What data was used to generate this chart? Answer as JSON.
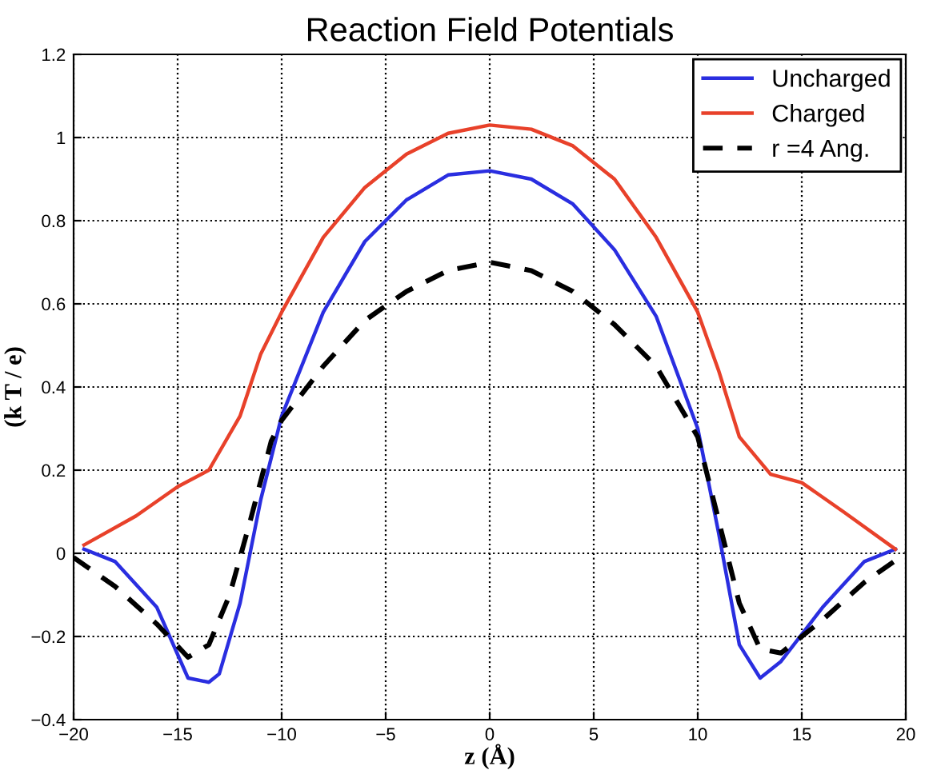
{
  "chart_data": {
    "type": "line",
    "title": "Reaction Field Potentials",
    "xlabel": "z (Å)",
    "ylabel": "(k T / e)",
    "xlim": [
      -20,
      20
    ],
    "ylim": [
      -0.4,
      1.2
    ],
    "xticks": [
      {
        "value": -20,
        "label": "−20"
      },
      {
        "value": -15,
        "label": "−15"
      },
      {
        "value": -10,
        "label": "−10"
      },
      {
        "value": -5,
        "label": "−5"
      },
      0,
      5,
      10,
      15,
      20
    ],
    "yticks": [
      {
        "value": -0.4,
        "label": "−0.4"
      },
      {
        "value": -0.2,
        "label": "−0.2"
      },
      0,
      0.2,
      0.4,
      0.6,
      0.8,
      1,
      1.2
    ],
    "grid": true,
    "legend": "top right",
    "series": [
      {
        "name": "Uncharged",
        "color": "#2a2ee0",
        "line_style": "solid",
        "x": [
          -19.5,
          -18,
          -16,
          -14.5,
          -13.5,
          -13,
          -12,
          -11,
          -10,
          -8,
          -6,
          -4,
          -2,
          0,
          2,
          4,
          6,
          8,
          10,
          11,
          12,
          13,
          14,
          16,
          18,
          19.5
        ],
        "values": [
          0.01,
          -0.02,
          -0.13,
          -0.3,
          -0.31,
          -0.29,
          -0.12,
          0.13,
          0.33,
          0.58,
          0.75,
          0.85,
          0.91,
          0.92,
          0.9,
          0.84,
          0.73,
          0.57,
          0.3,
          0.05,
          -0.22,
          -0.3,
          -0.26,
          -0.13,
          -0.02,
          0.01
        ]
      },
      {
        "name": "Charged",
        "color": "#e8412a",
        "line_style": "solid",
        "x": [
          -19.5,
          -17,
          -15,
          -13.5,
          -12,
          -11,
          -10,
          -8,
          -6,
          -4,
          -2,
          0,
          2,
          4,
          6,
          8,
          10,
          11,
          12,
          13.5,
          15,
          17,
          19.5
        ],
        "values": [
          0.02,
          0.09,
          0.16,
          0.2,
          0.33,
          0.48,
          0.58,
          0.76,
          0.88,
          0.96,
          1.01,
          1.03,
          1.02,
          0.98,
          0.9,
          0.76,
          0.58,
          0.44,
          0.28,
          0.19,
          0.17,
          0.1,
          0.01
        ]
      },
      {
        "name": "r =4 Ang.",
        "color": "#000000",
        "line_style": "dashed",
        "x": [
          -20,
          -18,
          -16,
          -14.5,
          -13.5,
          -12.5,
          -11.5,
          -10.5,
          -10,
          -8,
          -6,
          -4,
          -2,
          0,
          2,
          4,
          6,
          8,
          10,
          11,
          12,
          13,
          14,
          16,
          18,
          20
        ],
        "values": [
          -0.01,
          -0.08,
          -0.17,
          -0.25,
          -0.22,
          -0.1,
          0.08,
          0.27,
          0.32,
          0.45,
          0.56,
          0.63,
          0.68,
          0.7,
          0.68,
          0.63,
          0.55,
          0.45,
          0.28,
          0.08,
          -0.12,
          -0.23,
          -0.24,
          -0.16,
          -0.07,
          0.0
        ]
      }
    ]
  }
}
